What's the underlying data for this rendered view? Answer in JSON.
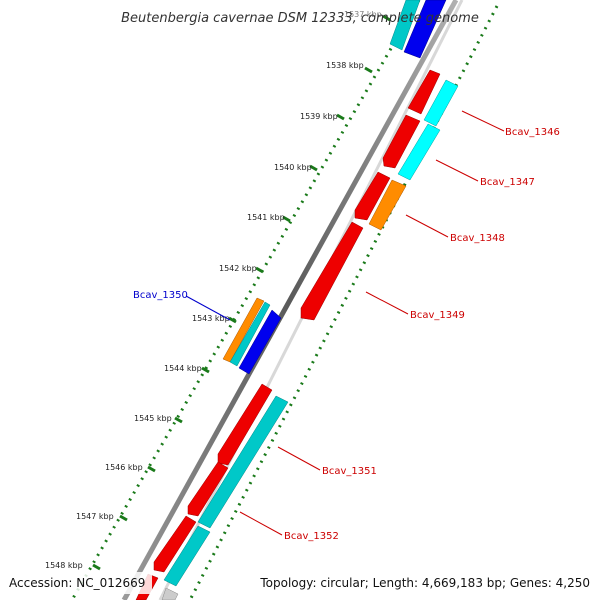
{
  "title": "Beutenbergia cavernae DSM 12333, complete genome",
  "footer": {
    "accession": "Accession: NC_012669",
    "topology": "Topology: circular; Length: 4,669,183 bp; Genes: 4,250"
  },
  "ticks": [
    "1537 kbp",
    "1538 kbp",
    "1539 kbp",
    "1540 kbp",
    "1541 kbp",
    "1542 kbp",
    "1543 kbp",
    "1544 kbp",
    "1545 kbp",
    "1546 kbp",
    "1547 kbp",
    "1548 kbp"
  ],
  "genes": [
    {
      "name": "Bcav_1346",
      "color": "#cc0000"
    },
    {
      "name": "Bcav_1347",
      "color": "#cc0000"
    },
    {
      "name": "Bcav_1348",
      "color": "#cc0000"
    },
    {
      "name": "Bcav_1349",
      "color": "#cc0000"
    },
    {
      "name": "Bcav_1350",
      "color": "#0000cc"
    },
    {
      "name": "Bcav_1351",
      "color": "#cc0000"
    },
    {
      "name": "Bcav_1352",
      "color": "#cc0000"
    }
  ],
  "colors": {
    "cds_red": "#ee0000",
    "cds_cyan_light": "#00ffff",
    "cds_cyan_dark": "#00c8c8",
    "cds_orange": "#ff8c00",
    "cds_blue": "#0000ee",
    "tick_dots": "#1a7a1a"
  }
}
